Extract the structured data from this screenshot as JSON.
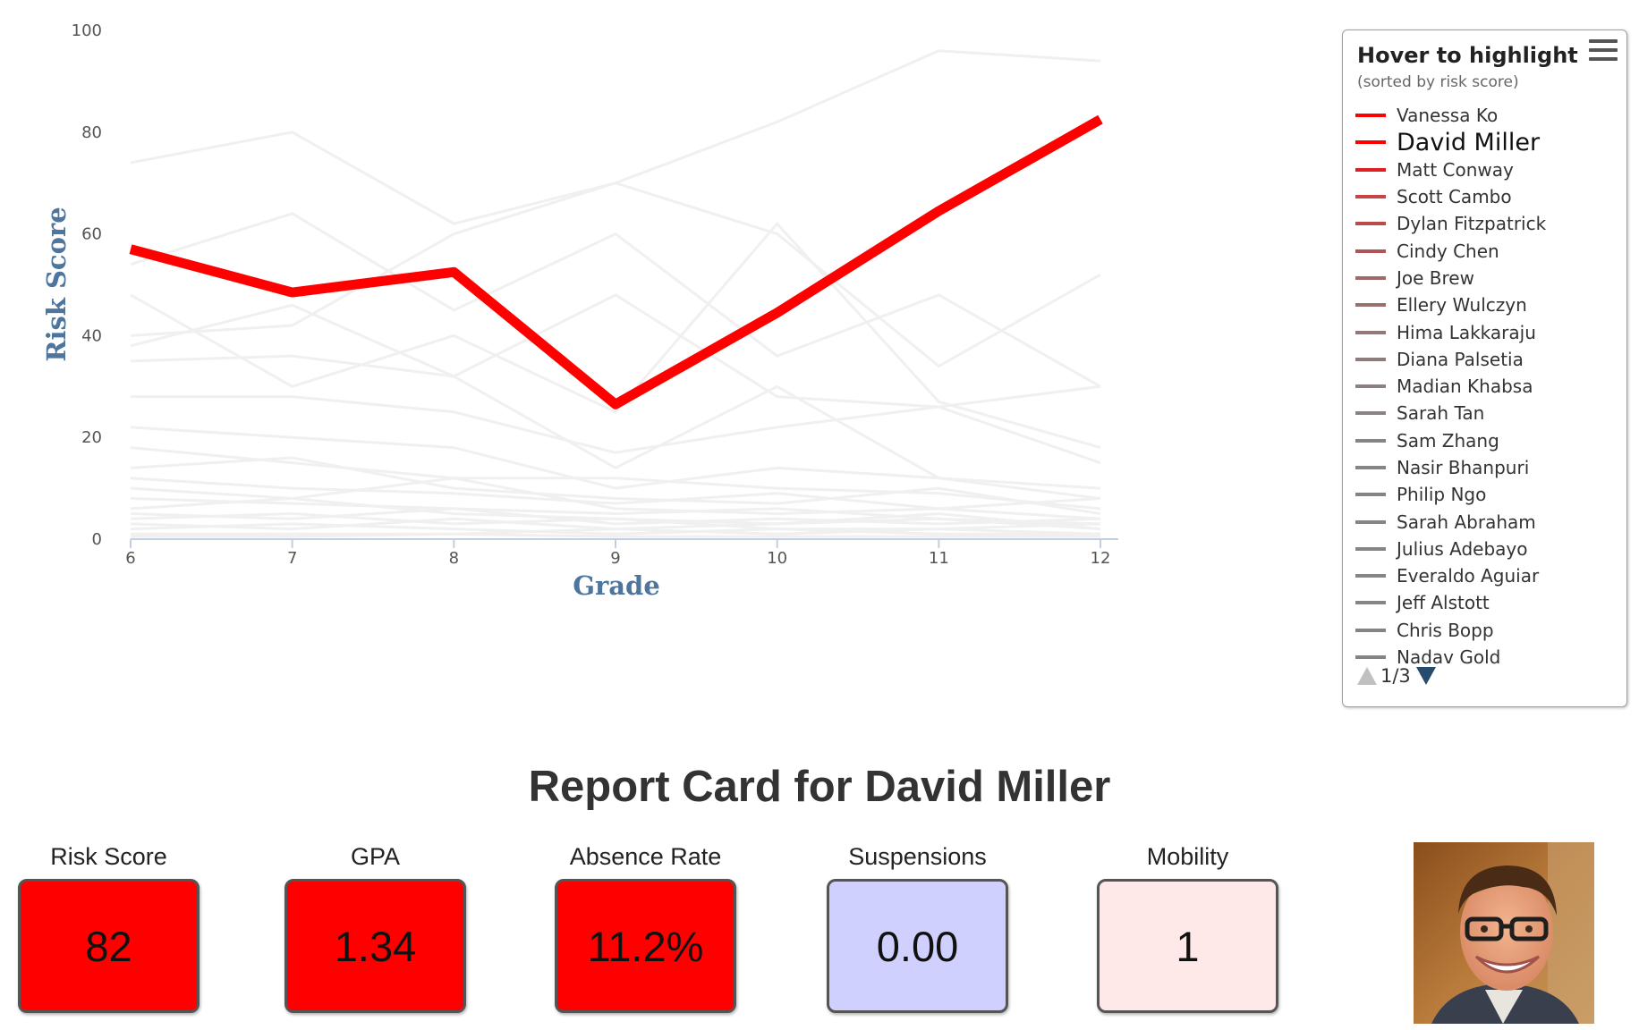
{
  "chart_data": {
    "type": "line",
    "xlabel": "Grade",
    "ylabel": "Risk Score",
    "x": [
      6,
      7,
      8,
      9,
      10,
      11,
      12
    ],
    "x_ticks": [
      "6",
      "7",
      "8",
      "9",
      "10",
      "11",
      "12"
    ],
    "y_ticks": [
      "0",
      "20",
      "40",
      "60",
      "80",
      "100"
    ],
    "ylim": [
      0,
      100
    ],
    "highlighted_series": {
      "name": "David Miller",
      "values": [
        57,
        48.5,
        52.5,
        26.5,
        44.5,
        64.5,
        82.5
      ],
      "color": "#ff0000"
    },
    "background_series": [
      [
        74,
        80,
        62,
        70,
        82,
        96,
        94
      ],
      [
        54,
        64,
        45,
        60,
        36,
        48,
        30
      ],
      [
        40,
        42,
        60,
        70,
        60,
        34,
        52
      ],
      [
        48,
        30,
        40,
        25,
        62,
        27,
        18
      ],
      [
        38,
        46,
        32,
        48,
        28,
        26,
        15
      ],
      [
        28,
        28,
        25,
        17,
        22,
        26,
        30
      ],
      [
        35,
        36,
        32,
        14,
        30,
        12,
        8
      ],
      [
        22,
        20,
        18,
        10,
        14,
        12,
        10
      ],
      [
        18,
        15,
        12,
        12,
        10,
        9,
        6
      ],
      [
        14,
        16,
        10,
        8,
        7,
        10,
        5
      ],
      [
        12,
        10,
        9,
        7,
        9,
        6,
        4
      ],
      [
        10,
        8,
        12,
        6,
        5,
        6,
        8
      ],
      [
        8,
        7,
        6,
        5,
        6,
        4,
        3
      ],
      [
        6,
        8,
        5,
        4,
        3,
        5,
        2
      ],
      [
        5,
        4,
        6,
        3,
        4,
        3,
        4
      ],
      [
        4,
        5,
        3,
        4,
        2,
        2,
        3
      ],
      [
        3,
        2,
        4,
        2,
        3,
        4,
        2
      ],
      [
        2,
        3,
        2,
        1,
        2,
        1,
        1
      ],
      [
        1,
        1,
        1,
        2,
        1,
        2,
        1
      ],
      [
        0.5,
        0.5,
        1,
        0.5,
        0.5,
        0.5,
        0.5
      ]
    ]
  },
  "legend": {
    "title": "Hover to highlight",
    "subtitle": "(sorted by risk score)",
    "page_indicator": "1/3",
    "items": [
      {
        "name": "Vanessa Ko",
        "color": "#ff0000"
      },
      {
        "name": "David Miller",
        "color": "#ff0000",
        "active": true
      },
      {
        "name": "Matt Conway",
        "color": "#e02020"
      },
      {
        "name": "Scott Cambo",
        "color": "#c84545"
      },
      {
        "name": "Dylan Fitzpatrick",
        "color": "#bb4a4a"
      },
      {
        "name": "Cindy Chen",
        "color": "#b05555"
      },
      {
        "name": "Joe Brew",
        "color": "#a06868"
      },
      {
        "name": "Ellery Wulczyn",
        "color": "#987070"
      },
      {
        "name": "Hima Lakkaraju",
        "color": "#927878"
      },
      {
        "name": "Diana Palsetia",
        "color": "#8e7c7c"
      },
      {
        "name": "Madian Khabsa",
        "color": "#8a8080"
      },
      {
        "name": "Sarah Tan",
        "color": "#888282"
      },
      {
        "name": "Sam Zhang",
        "color": "#868484"
      },
      {
        "name": "Nasir Bhanpuri",
        "color": "#858585"
      },
      {
        "name": "Philip Ngo",
        "color": "#858585"
      },
      {
        "name": "Sarah Abraham",
        "color": "#858585"
      },
      {
        "name": "Julius Adebayo",
        "color": "#858585"
      },
      {
        "name": "Everaldo Aguiar",
        "color": "#858585"
      },
      {
        "name": "Jeff Alstott",
        "color": "#858585"
      },
      {
        "name": "Chris Bopp",
        "color": "#858585"
      },
      {
        "name": "Nadav Gold",
        "color": "#858585"
      }
    ]
  },
  "report": {
    "title": "Report Card for David Miller",
    "metrics": [
      {
        "label": "Risk Score",
        "value": "82",
        "color": "#ff0000"
      },
      {
        "label": "GPA",
        "value": "1.34",
        "color": "#ff0000"
      },
      {
        "label": "Absence Rate",
        "value": "11.2%",
        "color": "#ff0000"
      },
      {
        "label": "Suspensions",
        "value": "0.00",
        "color": "#d0d0ff"
      },
      {
        "label": "Mobility",
        "value": "1",
        "color": "#ffe8e8"
      }
    ]
  }
}
